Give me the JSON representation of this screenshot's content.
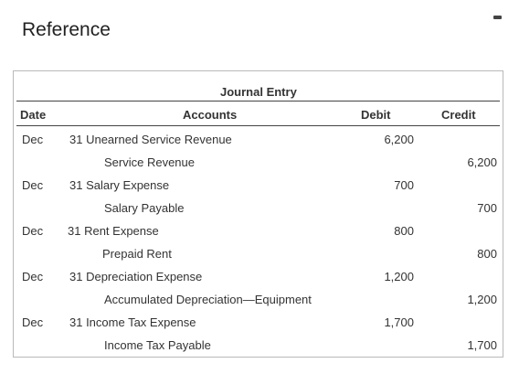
{
  "window": {
    "title": "Reference"
  },
  "table": {
    "caption": "Journal Entry",
    "headers": {
      "date": "Date",
      "accounts": "Accounts",
      "debit": "Debit",
      "credit": "Credit"
    },
    "entries": [
      {
        "month": "Dec",
        "debit_account": "31 Unearned Service Revenue",
        "credit_account": "Service Revenue",
        "debit": "6,200",
        "credit": "6,200"
      },
      {
        "month": "Dec",
        "debit_account": "31 Salary Expense",
        "credit_account": "Salary Payable",
        "debit": "700",
        "credit": "700"
      },
      {
        "month": "Dec",
        "debit_account": "31 Rent Expense",
        "credit_account": "Prepaid Rent",
        "debit": "800",
        "credit": "800"
      },
      {
        "month": "Dec",
        "debit_account": "31 Depreciation Expense",
        "credit_account": "Accumulated Depreciation—Equipment",
        "debit": "1,200",
        "credit": "1,200"
      },
      {
        "month": "Dec",
        "debit_account": "31 Income Tax Expense",
        "credit_account": "Income Tax Payable",
        "debit": "1,700",
        "credit": "1,700"
      }
    ]
  }
}
